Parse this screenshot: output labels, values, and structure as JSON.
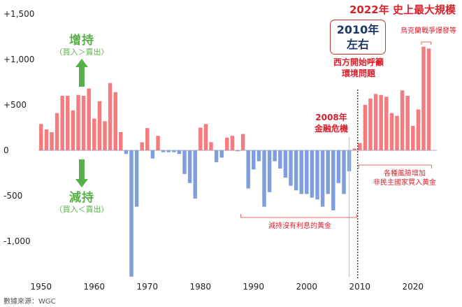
{
  "chart_data": {
    "type": "bar",
    "title": "2022年 史上最大規模",
    "xlabel": "",
    "ylabel": "",
    "ylim": [
      -1400,
      1500
    ],
    "xlim": [
      1949.5,
      2024.5
    ],
    "y_ticks": [
      {
        "value": 1500,
        "label": "+1,500"
      },
      {
        "value": 1000,
        "label": "+1,000"
      },
      {
        "value": 500,
        "label": "+500"
      },
      {
        "value": 0,
        "label": "0"
      },
      {
        "value": -500,
        "label": "-500"
      },
      {
        "value": -1000,
        "label": "-1,000"
      }
    ],
    "x_ticks": [
      1950,
      1960,
      1970,
      1980,
      1990,
      2000,
      2010,
      2020
    ],
    "grid": false,
    "positive_color": "#f47c7f",
    "negative_color": "#7f9fdc",
    "years": [
      1950,
      1951,
      1952,
      1953,
      1954,
      1955,
      1956,
      1957,
      1958,
      1959,
      1960,
      1961,
      1962,
      1963,
      1964,
      1965,
      1966,
      1967,
      1968,
      1969,
      1970,
      1971,
      1972,
      1973,
      1974,
      1975,
      1976,
      1977,
      1978,
      1979,
      1980,
      1981,
      1982,
      1983,
      1984,
      1985,
      1986,
      1987,
      1988,
      1989,
      1990,
      1991,
      1992,
      1993,
      1994,
      1995,
      1996,
      1997,
      1998,
      1999,
      2000,
      2001,
      2002,
      2003,
      2004,
      2005,
      2006,
      2007,
      2008,
      2009,
      2010,
      2011,
      2012,
      2013,
      2014,
      2015,
      2016,
      2017,
      2018,
      2019,
      2020,
      2021,
      2022,
      2023
    ],
    "values": [
      290,
      230,
      200,
      410,
      600,
      600,
      440,
      610,
      600,
      680,
      350,
      540,
      320,
      740,
      640,
      200,
      -40,
      -1390,
      -620,
      90,
      245,
      -90,
      160,
      -20,
      -20,
      -20,
      -40,
      -260,
      -360,
      -530,
      250,
      290,
      90,
      -130,
      -80,
      140,
      160,
      -10,
      180,
      -420,
      -210,
      -120,
      -620,
      -460,
      -120,
      -200,
      -300,
      -390,
      -440,
      -480,
      -480,
      -520,
      -540,
      -620,
      -480,
      -660,
      -360,
      -480,
      -230,
      20,
      80,
      500,
      570,
      620,
      610,
      590,
      410,
      380,
      660,
      600,
      270,
      450,
      1140,
      1120
    ]
  },
  "annotations": {
    "label_increase": "增持",
    "label_increase_sub": "（買入＞賣出）",
    "label_decrease": "減持",
    "label_decrease_sub": "（買入＜賣出）",
    "callout_2010_line1": "2010年",
    "callout_2010_line2": "左右",
    "west_line1": "西方開始呼籲",
    "west_line2": "環境問題",
    "crisis_line1": "2008年",
    "crisis_line2": "金融危機",
    "war": "烏克蘭戰爭爆發等",
    "risk_line1": "各種風險增加",
    "risk_line2": "非民主國家買入黃金",
    "no_interest": "減持沒有利息的黃金"
  },
  "source": "數據來源：WGC",
  "colors": {
    "accent_red": "#d9212c",
    "green": "#59b04a",
    "navy": "#1f3864"
  }
}
